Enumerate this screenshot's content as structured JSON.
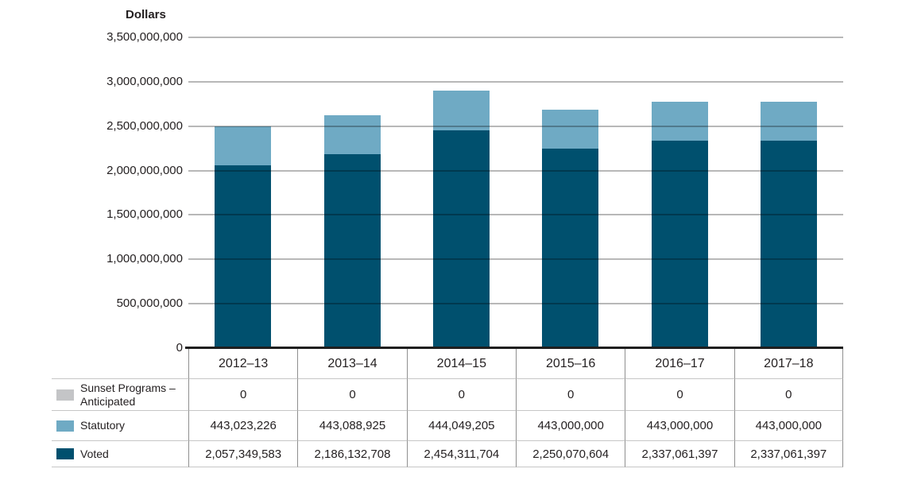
{
  "y_axis": {
    "title": "Dollars",
    "ticks": [
      "3,500,000,000",
      "3,000,000,000",
      "2,500,000,000",
      "2,000,000,000",
      "1,500,000,000",
      "1,000,000,000",
      "500,000,000",
      "0"
    ]
  },
  "chart_data": {
    "type": "bar",
    "stacked": true,
    "title": "Dollars",
    "ylabel": "Dollars",
    "ylim": [
      0,
      3500000000
    ],
    "ytick_step": 500000000,
    "grid": true,
    "legend_position": "table-left-below",
    "categories": [
      "2012–13",
      "2013–14",
      "2014–15",
      "2015–16",
      "2016–17",
      "2017–18"
    ],
    "series": [
      {
        "name": "Voted",
        "color": "#00506e",
        "values": [
          2057349583,
          2186132708,
          2454311704,
          2250070604,
          2337061397,
          2337061397
        ]
      },
      {
        "name": "Statutory",
        "color": "#6faac4",
        "values": [
          443023226,
          443088925,
          444049205,
          443000000,
          443000000,
          443000000
        ]
      },
      {
        "name": "Sunset Programs – Anticipated",
        "color": "#c4c5c7",
        "values": [
          0,
          0,
          0,
          0,
          0,
          0
        ]
      }
    ]
  },
  "table": {
    "rows": [
      {
        "label": "Sunset Programs – Anticipated",
        "color": "#c4c5c7",
        "values": [
          "0",
          "0",
          "0",
          "0",
          "0",
          "0"
        ]
      },
      {
        "label": "Statutory",
        "color": "#6faac4",
        "values": [
          "443,023,226",
          "443,088,925",
          "444,049,205",
          "443,000,000",
          "443,000,000",
          "443,000,000"
        ]
      },
      {
        "label": "Voted",
        "color": "#00506e",
        "values": [
          "2,057,349,583",
          "2,186,132,708",
          "2,454,311,704",
          "2,250,070,604",
          "2,337,061,397",
          "2,337,061,397"
        ]
      }
    ]
  },
  "colors": {
    "voted": "#00506e",
    "statutory": "#6faac4",
    "sunset": "#c4c5c7",
    "gridline": "#b5b5b5",
    "axis": "#1f1f1f",
    "border_h": "#c6c6c6",
    "border_v": "#8f8f8f",
    "text": "#231f20"
  }
}
